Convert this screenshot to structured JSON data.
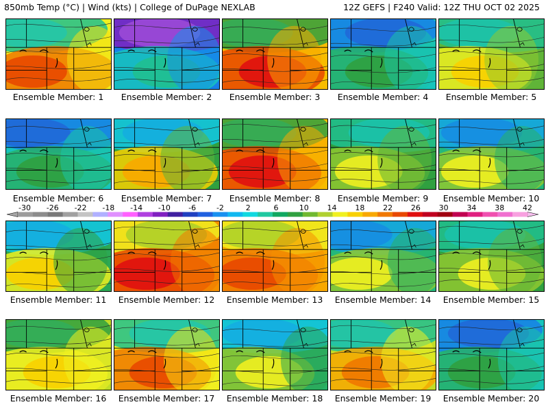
{
  "header": {
    "left": "850mb Temp (°C) | Wind (kts) | College of DuPage NEXLAB",
    "right": "12Z GEFS | F240 Valid: 12Z THU OCT 02 2025"
  },
  "members": [
    {
      "label": "Ensemble Member: 1",
      "warm": 22,
      "cool": 6
    },
    {
      "label": "Ensemble Member: 2",
      "warm": 6,
      "cool": -10
    },
    {
      "label": "Ensemble Member: 3",
      "warm": 24,
      "cool": 10
    },
    {
      "label": "Ensemble Member: 4",
      "warm": 10,
      "cool": -2
    },
    {
      "label": "Ensemble Member: 5",
      "warm": 16,
      "cool": 6
    },
    {
      "label": "Ensemble Member: 6",
      "warm": 10,
      "cool": -2
    },
    {
      "label": "Ensemble Member: 7",
      "warm": 18,
      "cool": 2
    },
    {
      "label": "Ensemble Member: 8",
      "warm": 24,
      "cool": 10
    },
    {
      "label": "Ensemble Member: 9",
      "warm": 14,
      "cool": 6
    },
    {
      "label": "Ensemble Member: 10",
      "warm": 14,
      "cool": 0
    },
    {
      "label": "Ensemble Member: 11",
      "warm": 16,
      "cool": 2
    },
    {
      "label": "Ensemble Member: 12",
      "warm": 24,
      "cool": 14
    },
    {
      "label": "Ensemble Member: 13",
      "warm": 22,
      "cool": 14
    },
    {
      "label": "Ensemble Member: 14",
      "warm": 14,
      "cool": 0
    },
    {
      "label": "Ensemble Member: 15",
      "warm": 14,
      "cool": 6
    },
    {
      "label": "Ensemble Member: 16",
      "warm": 16,
      "cool": 10
    },
    {
      "label": "Ensemble Member: 17",
      "warm": 22,
      "cool": 6
    },
    {
      "label": "Ensemble Member: 18",
      "warm": 14,
      "cool": 2
    },
    {
      "label": "Ensemble Member: 19",
      "warm": 20,
      "cool": 6
    },
    {
      "label": "Ensemble Member: 20",
      "warm": 10,
      "cool": -2
    }
  ],
  "colorbar": {
    "labels": [
      "-30",
      "-26",
      "-22",
      "-18",
      "-14",
      "-10",
      "-6",
      "-2",
      "2",
      "6",
      "10",
      "14",
      "18",
      "22",
      "26",
      "30",
      "34",
      "38",
      "42"
    ],
    "colors": [
      "#9c9c9c",
      "#8c8c8c",
      "#787878",
      "#a0a0a0",
      "#c4c4c4",
      "#b0b0ff",
      "#e090ff",
      "#ff60ff",
      "#b040e0",
      "#8020c0",
      "#4020a0",
      "#2040c0",
      "#2060e0",
      "#1890f0",
      "#10b8f0",
      "#10d8e0",
      "#20c8a0",
      "#10a860",
      "#30a040",
      "#70b830",
      "#b0d030",
      "#f0f020",
      "#f8d000",
      "#f8a800",
      "#f07800",
      "#e84800",
      "#e01010",
      "#c00020",
      "#a00010",
      "#c00050",
      "#e02080",
      "#f050b0",
      "#f070d0",
      "#f8a0e0"
    ]
  }
}
